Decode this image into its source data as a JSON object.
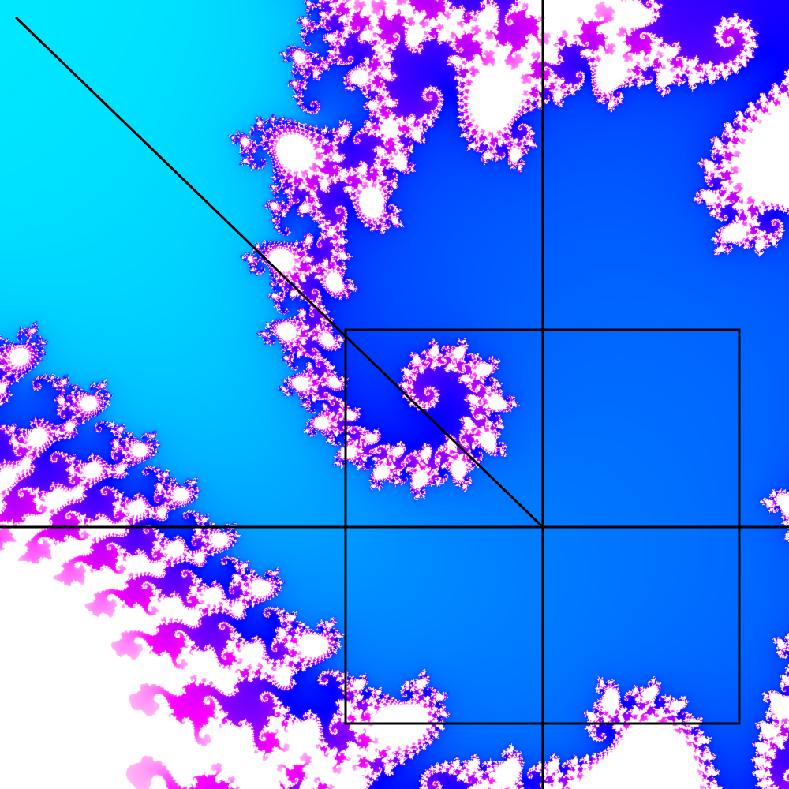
{
  "view": {
    "description_free": true,
    "fractal": "mandelbrot-boundary-detail",
    "palette": {
      "interior": "#ffffff",
      "outer_ring_light": "#ffb8f4",
      "magenta": "#ff00ff",
      "violet": "#8800ff",
      "blue": "#0000ff",
      "azure": "#0078ff",
      "cyan": "#00ffff",
      "spring_green": "#00ff88",
      "outline": "#000000"
    }
  },
  "overlay": {
    "stroke_color": "#000000",
    "elements": [
      "vertical-axis-line",
      "horizontal-axis-line",
      "diagonal-line",
      "zoom-selection-box"
    ]
  }
}
